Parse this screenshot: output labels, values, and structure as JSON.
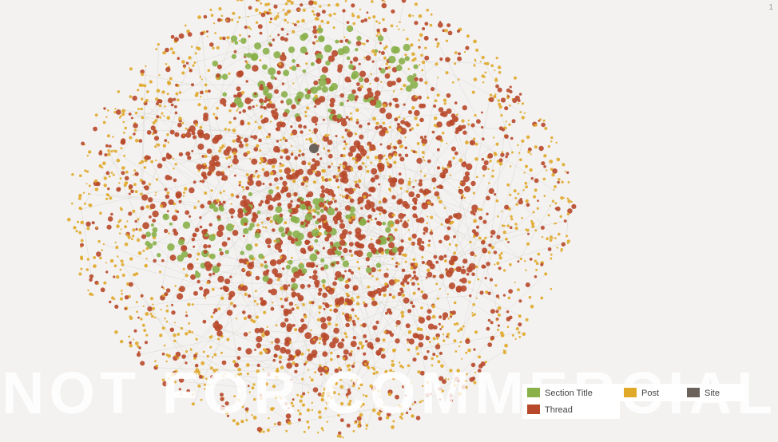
{
  "corner_mark": "1",
  "watermark": "NOT FOR COMMERCIAL USE",
  "legend": [
    {
      "label": "Section Title",
      "color": "#8ab04a"
    },
    {
      "label": "Post",
      "color": "#e0a92a"
    },
    {
      "label": "Site",
      "color": "#6b625c"
    },
    {
      "label": "Thread",
      "color": "#b8482a"
    }
  ]
}
